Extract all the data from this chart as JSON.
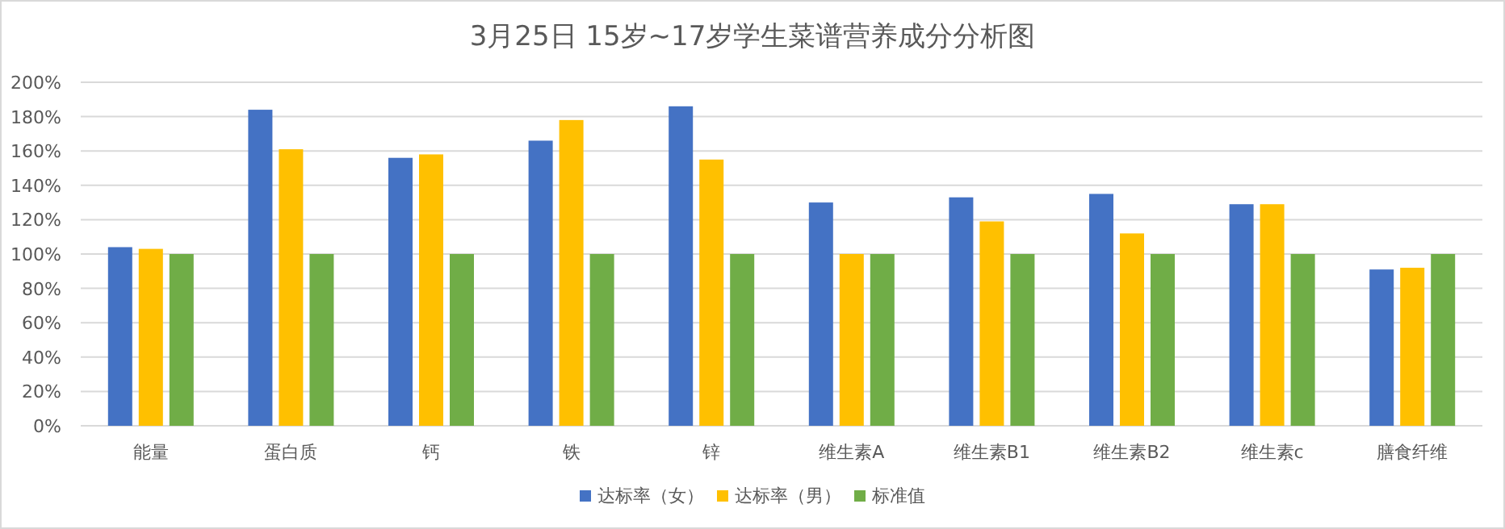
{
  "chart_data": {
    "type": "bar",
    "title": "3月25日 15岁~17岁学生菜谱营养成分分析图",
    "categories": [
      "能量",
      "蛋白质",
      "钙",
      "铁",
      "锌",
      "维生素A",
      "维生素B1",
      "维生素B2",
      "维生素c",
      "膳食纤维"
    ],
    "series": [
      {
        "name": "达标率（女）",
        "color": "#4472c4",
        "values": [
          104,
          184,
          156,
          166,
          186,
          130,
          133,
          135,
          129,
          91
        ]
      },
      {
        "name": "达标率（男）",
        "color": "#ffc000",
        "values": [
          103,
          161,
          158,
          178,
          155,
          100,
          119,
          112,
          129,
          92
        ]
      },
      {
        "name": "标准值",
        "color": "#70ad47",
        "values": [
          100,
          100,
          100,
          100,
          100,
          100,
          100,
          100,
          100,
          100
        ]
      }
    ],
    "ylim": [
      0,
      200
    ],
    "yticks": [
      {
        "value": 0,
        "label": "0%"
      },
      {
        "value": 20,
        "label": "20%"
      },
      {
        "value": 40,
        "label": "40%"
      },
      {
        "value": 60,
        "label": "60%"
      },
      {
        "value": 80,
        "label": "80%"
      },
      {
        "value": 100,
        "label": "100%"
      },
      {
        "value": 120,
        "label": "120%"
      },
      {
        "value": 140,
        "label": "140%"
      },
      {
        "value": 160,
        "label": "160%"
      },
      {
        "value": 180,
        "label": "180%"
      },
      {
        "value": 200,
        "label": "200%"
      }
    ],
    "grid": "y",
    "legend": "bottom"
  }
}
